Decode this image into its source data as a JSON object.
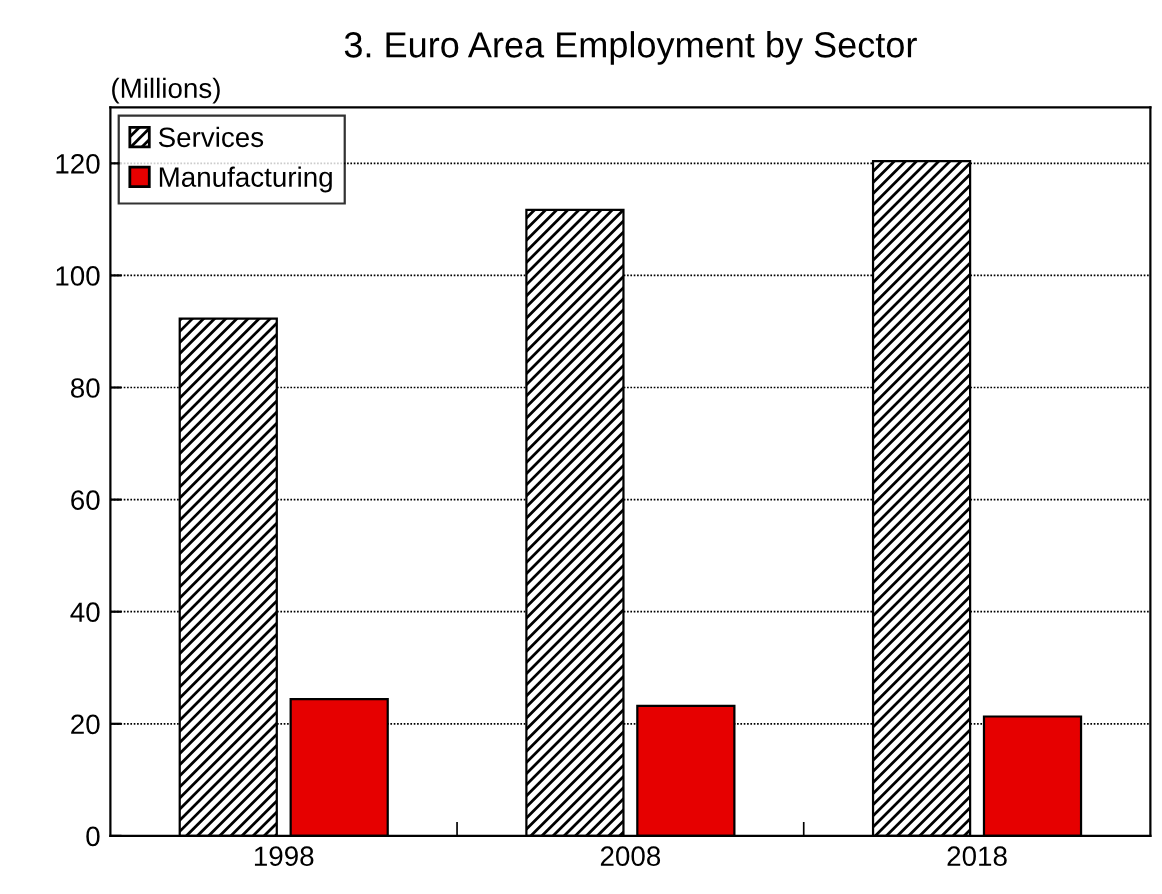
{
  "chart_data": {
    "type": "bar",
    "title": "3. Euro Area Employment by Sector",
    "ylabel": "(Millions)",
    "categories": [
      "1998",
      "2008",
      "2018"
    ],
    "series": [
      {
        "name": "Services",
        "color": "#000000",
        "values": [
          92.3,
          111.7,
          120.4
        ]
      },
      {
        "name": "Manufacturing",
        "color": "#e60000",
        "values": [
          24.4,
          23.2,
          21.3
        ]
      }
    ],
    "ylim": [
      0,
      130
    ],
    "yticks": [
      0,
      20,
      40,
      60,
      80,
      100,
      120
    ],
    "grid": "y",
    "legend": "top left"
  }
}
